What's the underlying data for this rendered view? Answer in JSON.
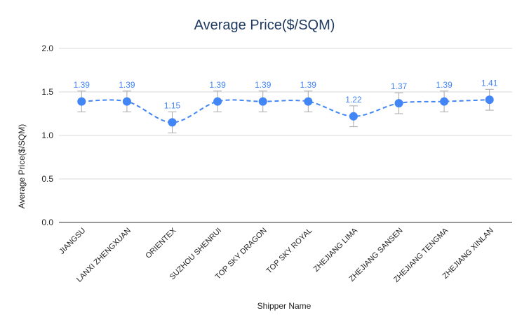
{
  "chart_data": {
    "type": "line",
    "title": "Average Price($/SQM)",
    "xlabel": "Shipper Name",
    "ylabel": "Average Price($/SQM)",
    "ylim": [
      0,
      2.0
    ],
    "yticks": [
      "0.0",
      "0.5",
      "1.0",
      "1.5",
      "2.0"
    ],
    "grid": true,
    "categories": [
      "JIANGSU",
      "LANXI ZHENGXUAN",
      "ORIENTEX",
      "SUZHOU SHENRUI",
      "TOP SKY DRAGON",
      "TOP SKY ROYAL",
      "ZHEJIANG LIMA",
      "ZHEJIANG SANSEN",
      "ZHEJIANG TENGMA",
      "ZHEJIANG XINLAN"
    ],
    "values": [
      1.39,
      1.39,
      1.15,
      1.39,
      1.39,
      1.39,
      1.22,
      1.37,
      1.39,
      1.41
    ],
    "data_labels": [
      "1.39",
      "1.39",
      "1.15",
      "1.39",
      "1.39",
      "1.39",
      "1.22",
      "1.37",
      "1.39",
      "1.41"
    ],
    "error_bar": 0.12,
    "line_style": "dashed-smooth",
    "colors": {
      "series": "#4285f4",
      "grid": "#d9d9d9",
      "error_bar": "#a9a9a9",
      "title": "#1f3a60"
    }
  }
}
